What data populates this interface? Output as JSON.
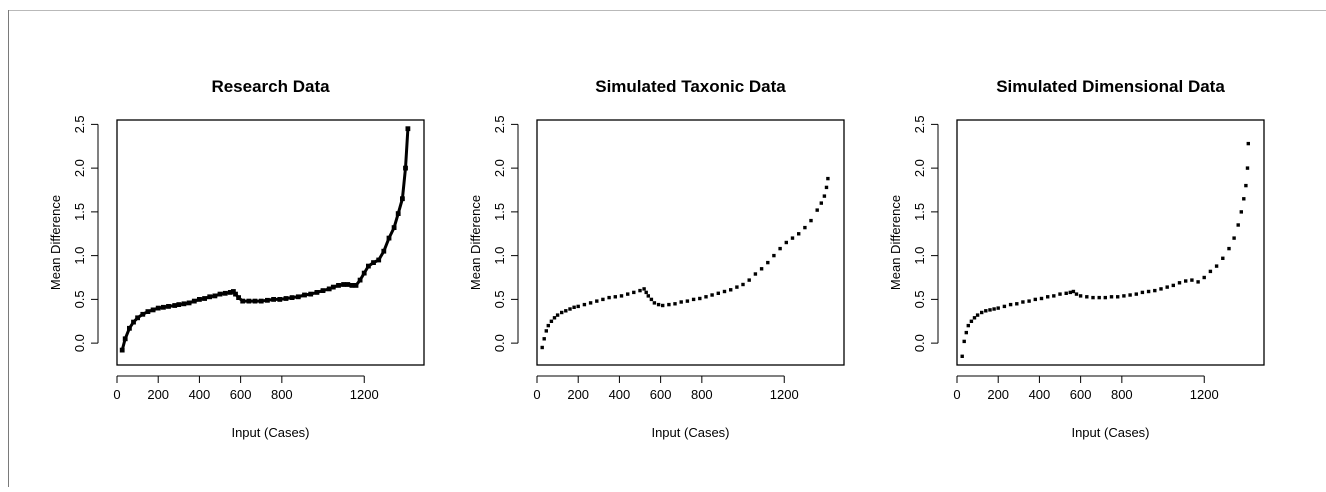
{
  "chart_data": [
    {
      "type": "scatter",
      "title": "Research Data",
      "xlabel": "Input (Cases)",
      "ylabel": "Mean Difference",
      "xlim": [
        0,
        1490
      ],
      "ylim": [
        -0.25,
        2.55
      ],
      "xticks": [
        0,
        200,
        400,
        600,
        800,
        1200
      ],
      "yticks": [
        0.0,
        0.5,
        1.0,
        1.5,
        2.0,
        2.5
      ],
      "x_tick_labels": [
        "0",
        "200",
        "400",
        "600",
        "800",
        "1200"
      ],
      "y_tick_labels": [
        "0.0",
        "0.5",
        "1.0",
        "1.5",
        "2.0",
        "2.5"
      ],
      "grid": false,
      "style": "dense-line",
      "series": [
        {
          "x": [
            25,
            40,
            60,
            80,
            100,
            125,
            150,
            175,
            200,
            225,
            250,
            280,
            300,
            325,
            350,
            375,
            400,
            425,
            450,
            475,
            500,
            525,
            550,
            565,
            575,
            590,
            610,
            640,
            670,
            700,
            730,
            760,
            790,
            820,
            850,
            880,
            910,
            940,
            970,
            1000,
            1030,
            1050,
            1075,
            1100,
            1120,
            1140,
            1160,
            1180,
            1200,
            1220,
            1245,
            1270,
            1295,
            1320,
            1345,
            1365,
            1385,
            1400,
            1412
          ],
          "y": [
            -0.08,
            0.05,
            0.17,
            0.24,
            0.29,
            0.33,
            0.36,
            0.38,
            0.4,
            0.41,
            0.42,
            0.43,
            0.44,
            0.45,
            0.46,
            0.48,
            0.5,
            0.51,
            0.53,
            0.54,
            0.56,
            0.57,
            0.58,
            0.59,
            0.56,
            0.52,
            0.48,
            0.48,
            0.48,
            0.48,
            0.49,
            0.5,
            0.5,
            0.51,
            0.52,
            0.53,
            0.55,
            0.56,
            0.58,
            0.6,
            0.62,
            0.64,
            0.66,
            0.67,
            0.67,
            0.66,
            0.66,
            0.72,
            0.8,
            0.88,
            0.92,
            0.95,
            1.05,
            1.2,
            1.32,
            1.48,
            1.65,
            2.0,
            2.45
          ]
        }
      ]
    },
    {
      "type": "scatter",
      "title": "Simulated Taxonic Data",
      "xlabel": "Input (Cases)",
      "ylabel": "Mean Difference",
      "xlim": [
        0,
        1490
      ],
      "ylim": [
        -0.25,
        2.55
      ],
      "xticks": [
        0,
        200,
        400,
        600,
        800,
        1200
      ],
      "yticks": [
        0.0,
        0.5,
        1.0,
        1.5,
        2.0,
        2.5
      ],
      "x_tick_labels": [
        "0",
        "200",
        "400",
        "600",
        "800",
        "1200"
      ],
      "y_tick_labels": [
        "0.0",
        "0.5",
        "1.0",
        "1.5",
        "2.0",
        "2.5"
      ],
      "grid": false,
      "style": "points",
      "series": [
        {
          "x": [
            25,
            35,
            45,
            55,
            70,
            85,
            100,
            120,
            140,
            160,
            180,
            200,
            230,
            260,
            290,
            320,
            350,
            380,
            410,
            440,
            470,
            500,
            520,
            530,
            540,
            555,
            570,
            590,
            610,
            640,
            670,
            700,
            730,
            760,
            790,
            820,
            850,
            880,
            910,
            940,
            970,
            1000,
            1030,
            1060,
            1090,
            1120,
            1150,
            1180,
            1210,
            1240,
            1270,
            1300,
            1330,
            1360,
            1380,
            1395,
            1405,
            1412
          ],
          "y": [
            -0.05,
            0.05,
            0.14,
            0.2,
            0.25,
            0.29,
            0.32,
            0.35,
            0.37,
            0.39,
            0.41,
            0.42,
            0.44,
            0.46,
            0.48,
            0.5,
            0.52,
            0.53,
            0.54,
            0.56,
            0.58,
            0.6,
            0.62,
            0.58,
            0.54,
            0.5,
            0.46,
            0.44,
            0.43,
            0.44,
            0.45,
            0.47,
            0.48,
            0.5,
            0.51,
            0.53,
            0.55,
            0.57,
            0.59,
            0.61,
            0.64,
            0.67,
            0.72,
            0.79,
            0.85,
            0.92,
            1.0,
            1.08,
            1.15,
            1.2,
            1.25,
            1.32,
            1.4,
            1.52,
            1.6,
            1.68,
            1.78,
            1.88
          ]
        }
      ]
    },
    {
      "type": "scatter",
      "title": "Simulated Dimensional Data",
      "xlabel": "Input (Cases)",
      "ylabel": "Mean Difference",
      "xlim": [
        0,
        1490
      ],
      "ylim": [
        -0.25,
        2.55
      ],
      "xticks": [
        0,
        200,
        400,
        600,
        800,
        1200
      ],
      "yticks": [
        0.0,
        0.5,
        1.0,
        1.5,
        2.0,
        2.5
      ],
      "x_tick_labels": [
        "0",
        "200",
        "400",
        "600",
        "800",
        "1200"
      ],
      "y_tick_labels": [
        "0.0",
        "0.5",
        "1.0",
        "1.5",
        "2.0",
        "2.5"
      ],
      "grid": false,
      "style": "points",
      "series": [
        {
          "x": [
            25,
            35,
            45,
            55,
            70,
            85,
            100,
            120,
            140,
            160,
            180,
            200,
            230,
            260,
            290,
            320,
            350,
            380,
            410,
            440,
            470,
            500,
            530,
            550,
            565,
            580,
            600,
            630,
            660,
            690,
            720,
            750,
            780,
            810,
            840,
            870,
            900,
            930,
            960,
            990,
            1020,
            1050,
            1080,
            1110,
            1140,
            1170,
            1200,
            1230,
            1260,
            1290,
            1320,
            1345,
            1365,
            1380,
            1392,
            1402,
            1410,
            1414
          ],
          "y": [
            -0.15,
            0.02,
            0.12,
            0.2,
            0.25,
            0.29,
            0.32,
            0.35,
            0.37,
            0.38,
            0.39,
            0.4,
            0.42,
            0.44,
            0.45,
            0.47,
            0.48,
            0.5,
            0.51,
            0.53,
            0.54,
            0.56,
            0.57,
            0.58,
            0.59,
            0.56,
            0.54,
            0.53,
            0.52,
            0.52,
            0.52,
            0.53,
            0.53,
            0.54,
            0.55,
            0.56,
            0.58,
            0.59,
            0.6,
            0.62,
            0.64,
            0.66,
            0.69,
            0.71,
            0.72,
            0.7,
            0.75,
            0.82,
            0.88,
            0.97,
            1.08,
            1.2,
            1.35,
            1.5,
            1.65,
            1.8,
            2.0,
            2.28
          ]
        }
      ]
    }
  ]
}
